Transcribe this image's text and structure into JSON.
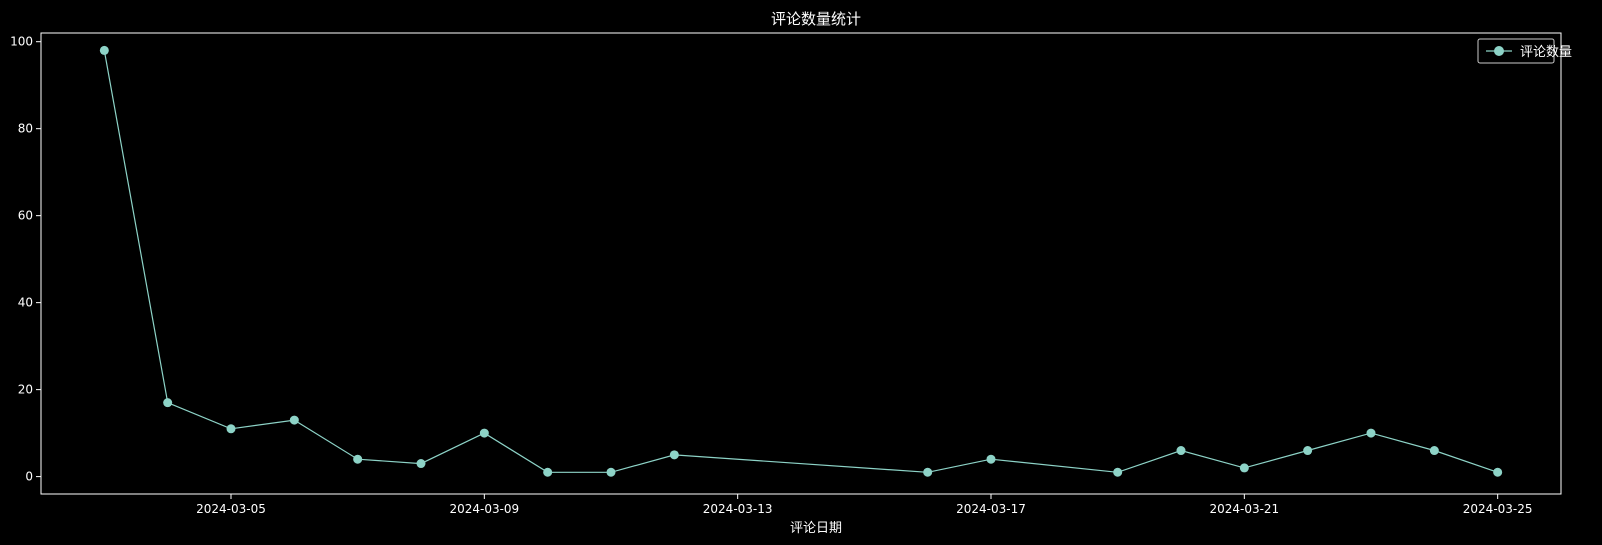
{
  "chart_data": {
    "type": "line",
    "title": "评论数量统计",
    "xlabel": "评论日期",
    "ylabel": "",
    "x": [
      "2024-03-03",
      "2024-03-04",
      "2024-03-05",
      "2024-03-06",
      "2024-03-07",
      "2024-03-08",
      "2024-03-09",
      "2024-03-10",
      "2024-03-11",
      "2024-03-12",
      "2024-03-16",
      "2024-03-17",
      "2024-03-19",
      "2024-03-20",
      "2024-03-21",
      "2024-03-22",
      "2024-03-23",
      "2024-03-24",
      "2024-03-25"
    ],
    "series": [
      {
        "name": "评论数量",
        "values": [
          98,
          17,
          11,
          13,
          4,
          3,
          10,
          1,
          1,
          5,
          1,
          4,
          1,
          6,
          2,
          6,
          10,
          6,
          1
        ]
      }
    ],
    "xlim": [
      "2024-03-02",
      "2024-03-26"
    ],
    "ylim": [
      -4,
      102
    ],
    "xticks": [
      "2024-03-05",
      "2024-03-09",
      "2024-03-13",
      "2024-03-17",
      "2024-03-21",
      "2024-03-25"
    ],
    "yticks": [
      0,
      20,
      40,
      60,
      80,
      100
    ],
    "grid": false,
    "legend_position": "top-right",
    "colors": {
      "background": "#000000",
      "series": "#8dd3c7",
      "text": "#ffffff",
      "axes": "#ffffff"
    }
  }
}
